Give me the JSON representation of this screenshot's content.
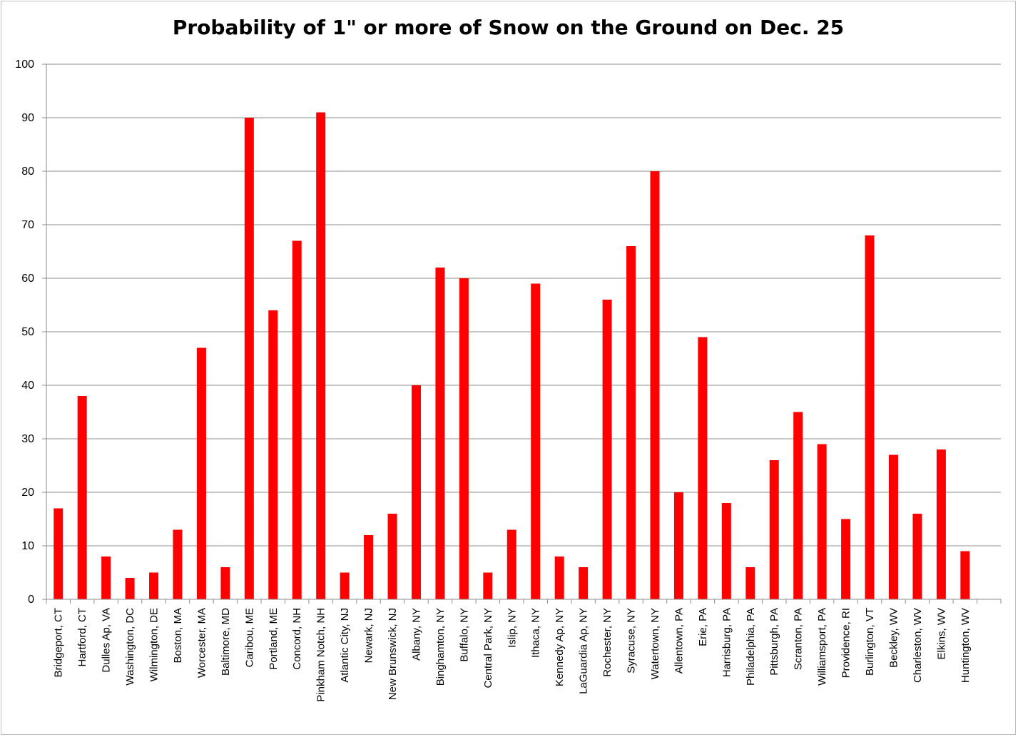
{
  "chart_data": {
    "type": "bar",
    "title": "Probability of 1\" or more of Snow on the Ground on Dec. 25",
    "xlabel": "",
    "ylabel": "",
    "ylim": [
      0,
      100
    ],
    "yticks": [
      "0",
      "10",
      "20",
      "30",
      "40",
      "50",
      "60",
      "70",
      "80",
      "90",
      "100"
    ],
    "grid": true,
    "legend": "none",
    "bar_color": "#ff0000",
    "categories": [
      "Bridgeport, CT",
      "Hartford, CT",
      "Dulles Ap, VA",
      "Washington, DC",
      "Wilmington, DE",
      "Boston, MA",
      "Worcester, MA",
      "Baltimore, MD",
      "Caribou, ME",
      "Portland, ME",
      "Concord, NH",
      "Pinkham Notch, NH",
      "Atlantic City, NJ",
      "Newark, NJ",
      "New Brunswick, NJ",
      "Albany, NY",
      "Binghamton, NY",
      "Buffalo, NY",
      "Central Park, NY",
      "Islip, NY",
      "Ithaca, NY",
      "Kennedy Ap, NY",
      "LaGuardia Ap, NY",
      "Rochester, NY",
      "Syracuse, NY",
      "Watertown, NY",
      "Allentown, PA",
      "Erie, PA",
      "Harrisburg, PA",
      "Philadelphia, PA",
      "Pittsburgh, PA",
      "Scranton, PA",
      "Williamsport, PA",
      "Providence, RI",
      "Burlington, VT",
      "Beckley, WV",
      "Charleston, WV",
      "Elkins, WV",
      "Huntington, WV",
      ""
    ],
    "values": [
      17,
      38,
      8,
      4,
      5,
      13,
      47,
      6,
      90,
      54,
      67,
      91,
      5,
      12,
      16,
      40,
      62,
      60,
      5,
      13,
      59,
      8,
      6,
      56,
      66,
      80,
      20,
      49,
      18,
      6,
      26,
      35,
      29,
      15,
      68,
      27,
      16,
      28,
      9,
      null
    ]
  }
}
